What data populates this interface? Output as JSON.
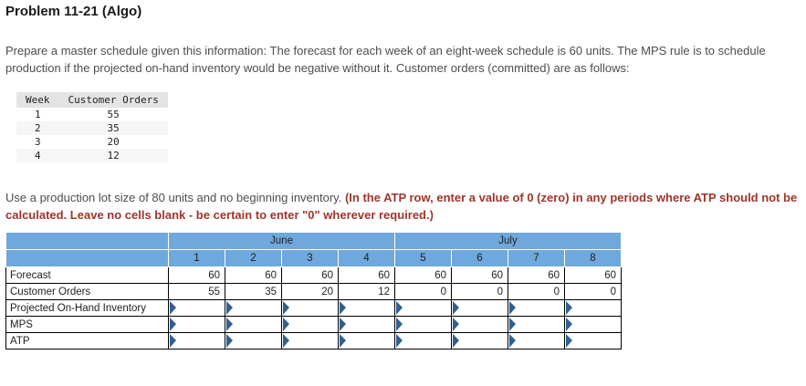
{
  "page": {
    "title": "Problem 11-21 (Algo)",
    "intro": "Prepare a master schedule given this information: The forecast for each week of an eight-week schedule is 60 units. The MPS rule is to schedule production if the projected on-hand inventory would be negative without it. Customer orders (committed) are as follows:",
    "instruction_normal": "Use a production lot size of 80 units and no beginning inventory. ",
    "instruction_bold_red": "(In the ATP row, enter a value of 0 (zero) in any periods where ATP should not be calculated. Leave no cells blank - be certain to enter \"0\" wherever required.)"
  },
  "orders_table": {
    "headers": [
      "Week",
      "Customer Orders"
    ],
    "rows": [
      [
        "1",
        "55"
      ],
      [
        "2",
        "35"
      ],
      [
        "3",
        "20"
      ],
      [
        "4",
        "12"
      ]
    ]
  },
  "schedule_table": {
    "months": [
      {
        "label": "June",
        "span": 4
      },
      {
        "label": "July",
        "span": 4
      }
    ],
    "weeks": [
      "1",
      "2",
      "3",
      "4",
      "5",
      "6",
      "7",
      "8"
    ],
    "rows": [
      {
        "label": "Forecast",
        "editable": false,
        "values": [
          "60",
          "60",
          "60",
          "60",
          "60",
          "60",
          "60",
          "60"
        ]
      },
      {
        "label": "Customer Orders",
        "editable": false,
        "values": [
          "55",
          "35",
          "20",
          "12",
          "0",
          "0",
          "0",
          "0"
        ]
      },
      {
        "label": "Projected On-Hand Inventory",
        "editable": true,
        "values": [
          "",
          "",
          "",
          "",
          "",
          "",
          "",
          ""
        ]
      },
      {
        "label": "MPS",
        "editable": true,
        "values": [
          "",
          "",
          "",
          "",
          "",
          "",
          "",
          ""
        ]
      },
      {
        "label": "ATP",
        "editable": true,
        "values": [
          "",
          "",
          "",
          "",
          "",
          "",
          "",
          ""
        ]
      }
    ]
  },
  "colors": {
    "header_bg": "#6fa8dc",
    "orders_header_bg": "#e4e4e4",
    "marker": "#31608f",
    "warning_text": "#9e342b"
  }
}
